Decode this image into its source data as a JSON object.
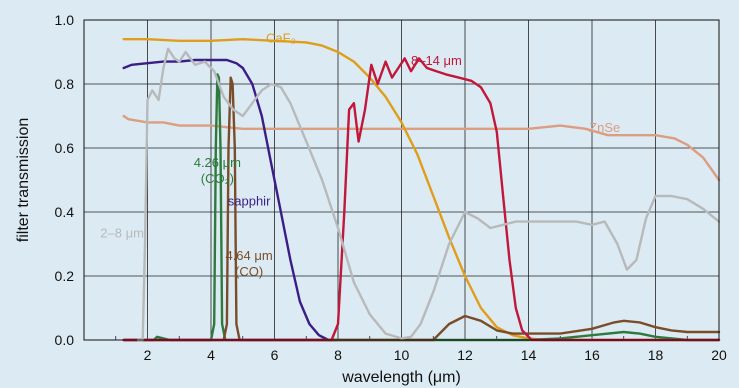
{
  "chart_data": {
    "type": "line",
    "title": "",
    "xlabel": "wavelength (μm)",
    "ylabel": "filter transmission",
    "xlim": [
      0,
      20
    ],
    "ylim": [
      0,
      1.0
    ],
    "x_ticks": [
      "2",
      "4",
      "6",
      "8",
      "10",
      "12",
      "14",
      "16",
      "18",
      "20"
    ],
    "y_ticks": [
      "0.0",
      "0.2",
      "0.4",
      "0.6",
      "0.8",
      "1.0"
    ],
    "grid": true,
    "background": "#dcebf3",
    "series": [
      {
        "key": "znse",
        "name": "ZnSe",
        "color": "#dc9d80",
        "label_lines": [
          "ZnSe"
        ],
        "label_at": [
          16.4,
          0.65
        ],
        "points": [
          [
            1.25,
            0.7
          ],
          [
            1.4,
            0.69
          ],
          [
            2,
            0.68
          ],
          [
            2.5,
            0.68
          ],
          [
            3,
            0.67
          ],
          [
            4,
            0.67
          ],
          [
            5,
            0.66
          ],
          [
            6,
            0.66
          ],
          [
            8,
            0.66
          ],
          [
            10,
            0.66
          ],
          [
            12,
            0.66
          ],
          [
            14,
            0.66
          ],
          [
            15,
            0.67
          ],
          [
            15.8,
            0.66
          ],
          [
            16.5,
            0.64
          ],
          [
            17,
            0.64
          ],
          [
            17.7,
            0.64
          ],
          [
            18,
            0.64
          ],
          [
            18.6,
            0.63
          ],
          [
            19,
            0.61
          ],
          [
            19.5,
            0.57
          ],
          [
            20,
            0.5
          ]
        ]
      },
      {
        "key": "caf2",
        "name": "CaF₂",
        "color": "#e09d1b",
        "label_lines": [
          "CaF₂"
        ],
        "label_at": [
          6.2,
          0.93
        ],
        "points": [
          [
            1.25,
            0.94
          ],
          [
            1.5,
            0.94
          ],
          [
            2,
            0.94
          ],
          [
            3,
            0.935
          ],
          [
            4,
            0.935
          ],
          [
            5,
            0.94
          ],
          [
            6,
            0.935
          ],
          [
            7,
            0.93
          ],
          [
            7.5,
            0.92
          ],
          [
            8,
            0.9
          ],
          [
            8.5,
            0.87
          ],
          [
            9,
            0.82
          ],
          [
            9.5,
            0.76
          ],
          [
            10,
            0.68
          ],
          [
            10.5,
            0.58
          ],
          [
            11,
            0.45
          ],
          [
            11.5,
            0.32
          ],
          [
            12,
            0.2
          ],
          [
            12.5,
            0.1
          ],
          [
            13,
            0.04
          ],
          [
            13.5,
            0.015
          ],
          [
            14,
            0.005
          ],
          [
            14.5,
            0.0
          ],
          [
            20,
            0.0
          ]
        ]
      },
      {
        "key": "sapphir",
        "name": "sapphir",
        "color": "#3b1d87",
        "label_lines": [
          "sapphir"
        ],
        "label_at": [
          5.2,
          0.42
        ],
        "points": [
          [
            1.25,
            0.85
          ],
          [
            1.5,
            0.86
          ],
          [
            2,
            0.865
          ],
          [
            2.5,
            0.87
          ],
          [
            3,
            0.87
          ],
          [
            3.5,
            0.875
          ],
          [
            4,
            0.875
          ],
          [
            4.5,
            0.875
          ],
          [
            4.8,
            0.865
          ],
          [
            5,
            0.85
          ],
          [
            5.3,
            0.8
          ],
          [
            5.6,
            0.7
          ],
          [
            5.9,
            0.55
          ],
          [
            6.2,
            0.4
          ],
          [
            6.5,
            0.25
          ],
          [
            6.8,
            0.12
          ],
          [
            7.1,
            0.05
          ],
          [
            7.4,
            0.015
          ],
          [
            7.7,
            0.0
          ],
          [
            8,
            0.0
          ]
        ]
      },
      {
        "key": "co2",
        "name": "4.26 μm (CO₂)",
        "color": "#2e7a3c",
        "label_lines": [
          "4.26 μm",
          "(CO₂)"
        ],
        "label_at": [
          4.2,
          0.54
        ],
        "points": [
          [
            1.25,
            0.0
          ],
          [
            2.2,
            0.0
          ],
          [
            2.3,
            0.01
          ],
          [
            2.5,
            0.005
          ],
          [
            2.7,
            0.0
          ],
          [
            4.0,
            0.0
          ],
          [
            4.1,
            0.05
          ],
          [
            4.15,
            0.6
          ],
          [
            4.2,
            0.83
          ],
          [
            4.25,
            0.82
          ],
          [
            4.3,
            0.6
          ],
          [
            4.35,
            0.05
          ],
          [
            4.45,
            0.0
          ],
          [
            14,
            0.0
          ],
          [
            15,
            0.005
          ],
          [
            16,
            0.015
          ],
          [
            17,
            0.025
          ],
          [
            17.5,
            0.02
          ],
          [
            18,
            0.01
          ],
          [
            19,
            0.0
          ],
          [
            20,
            0.0
          ]
        ]
      },
      {
        "key": "co",
        "name": "4.64 μm (CO)",
        "color": "#7a4d2a",
        "label_lines": [
          "4.64 μm",
          "(CO)"
        ],
        "label_at": [
          5.2,
          0.25
        ],
        "points": [
          [
            1.25,
            0.0
          ],
          [
            4.4,
            0.0
          ],
          [
            4.5,
            0.05
          ],
          [
            4.55,
            0.6
          ],
          [
            4.62,
            0.82
          ],
          [
            4.68,
            0.8
          ],
          [
            4.75,
            0.6
          ],
          [
            4.8,
            0.05
          ],
          [
            4.9,
            0.0
          ],
          [
            11,
            0.0
          ],
          [
            11.5,
            0.05
          ],
          [
            12,
            0.075
          ],
          [
            12.5,
            0.06
          ],
          [
            13,
            0.03
          ],
          [
            13.5,
            0.02
          ],
          [
            14,
            0.02
          ],
          [
            15,
            0.02
          ],
          [
            16,
            0.035
          ],
          [
            16.7,
            0.055
          ],
          [
            17,
            0.06
          ],
          [
            17.5,
            0.055
          ],
          [
            18,
            0.04
          ],
          [
            18.5,
            0.03
          ],
          [
            19,
            0.025
          ],
          [
            20,
            0.025
          ]
        ]
      },
      {
        "key": "band814",
        "name": "8–14 μm",
        "color": "#c0173a",
        "label_lines": [
          "8–14 μm"
        ],
        "label_at": [
          11.1,
          0.86
        ],
        "points": [
          [
            1.25,
            0.0
          ],
          [
            7.8,
            0.0
          ],
          [
            8.0,
            0.05
          ],
          [
            8.2,
            0.4
          ],
          [
            8.35,
            0.72
          ],
          [
            8.5,
            0.74
          ],
          [
            8.65,
            0.62
          ],
          [
            8.85,
            0.72
          ],
          [
            9.05,
            0.86
          ],
          [
            9.25,
            0.8
          ],
          [
            9.5,
            0.87
          ],
          [
            9.7,
            0.82
          ],
          [
            9.9,
            0.85
          ],
          [
            10.1,
            0.88
          ],
          [
            10.3,
            0.84
          ],
          [
            10.55,
            0.88
          ],
          [
            10.8,
            0.85
          ],
          [
            11.1,
            0.84
          ],
          [
            11.4,
            0.83
          ],
          [
            11.8,
            0.82
          ],
          [
            12.2,
            0.81
          ],
          [
            12.5,
            0.79
          ],
          [
            12.8,
            0.74
          ],
          [
            13.0,
            0.65
          ],
          [
            13.2,
            0.45
          ],
          [
            13.4,
            0.25
          ],
          [
            13.6,
            0.1
          ],
          [
            13.8,
            0.03
          ],
          [
            14.1,
            0.0
          ],
          [
            20,
            0.0
          ]
        ]
      },
      {
        "key": "band28",
        "name": "2–8 μm",
        "color": "#b7b9bb",
        "label_lines": [
          "2–8 μm"
        ],
        "label_at": [
          1.2,
          0.32
        ],
        "points": [
          [
            1.7,
            0.0
          ],
          [
            1.85,
            0.0
          ],
          [
            1.92,
            0.3
          ],
          [
            2.0,
            0.75
          ],
          [
            2.15,
            0.78
          ],
          [
            2.35,
            0.75
          ],
          [
            2.5,
            0.85
          ],
          [
            2.65,
            0.91
          ],
          [
            2.85,
            0.88
          ],
          [
            3.0,
            0.87
          ],
          [
            3.2,
            0.9
          ],
          [
            3.5,
            0.86
          ],
          [
            3.8,
            0.87
          ],
          [
            4.1,
            0.84
          ],
          [
            4.4,
            0.76
          ],
          [
            4.7,
            0.72
          ],
          [
            5.0,
            0.7
          ],
          [
            5.3,
            0.74
          ],
          [
            5.6,
            0.78
          ],
          [
            5.9,
            0.8
          ],
          [
            6.2,
            0.79
          ],
          [
            6.5,
            0.74
          ],
          [
            7.0,
            0.62
          ],
          [
            7.5,
            0.5
          ],
          [
            8.0,
            0.35
          ],
          [
            8.5,
            0.18
          ],
          [
            9.0,
            0.08
          ],
          [
            9.5,
            0.02
          ],
          [
            10.0,
            0.005
          ],
          [
            10.3,
            0.01
          ],
          [
            10.6,
            0.05
          ],
          [
            11.0,
            0.15
          ],
          [
            11.5,
            0.3
          ],
          [
            12.0,
            0.4
          ],
          [
            12.4,
            0.38
          ],
          [
            12.8,
            0.35
          ],
          [
            13.2,
            0.36
          ],
          [
            13.6,
            0.37
          ],
          [
            14.0,
            0.37
          ],
          [
            14.5,
            0.37
          ],
          [
            15.0,
            0.37
          ],
          [
            15.5,
            0.37
          ],
          [
            16.0,
            0.36
          ],
          [
            16.4,
            0.37
          ],
          [
            16.8,
            0.3
          ],
          [
            17.1,
            0.22
          ],
          [
            17.4,
            0.25
          ],
          [
            17.7,
            0.38
          ],
          [
            18.0,
            0.45
          ],
          [
            18.5,
            0.45
          ],
          [
            19.0,
            0.44
          ],
          [
            19.5,
            0.41
          ],
          [
            20.0,
            0.37
          ]
        ]
      }
    ]
  }
}
